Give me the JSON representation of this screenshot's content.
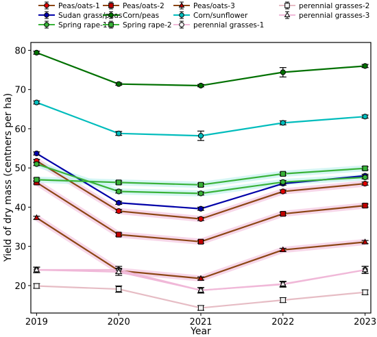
{
  "chart_data": {
    "type": "line",
    "title": "",
    "xlabel": "Year",
    "ylabel": "Yield of dry mass (centners per ha)",
    "x": [
      2019,
      2020,
      2021,
      2022,
      2023
    ],
    "xticks": [
      "2019",
      "2020",
      "2021",
      "2022",
      "2023"
    ],
    "yticks": [
      "20",
      "30",
      "40",
      "50",
      "60",
      "70",
      "80"
    ],
    "ylim": [
      13,
      82
    ],
    "grid": false,
    "legend": "top, outside plot, 3 columns",
    "series": [
      {
        "name": "Peas/oats-1",
        "values": [
          51.8,
          39.0,
          37.0,
          44.0,
          46.0
        ],
        "err": [
          0.4,
          0.4,
          0.4,
          0.4,
          0.4
        ],
        "color": "#8b4513",
        "marker": "circle",
        "marker_color": "#e00000",
        "halo": "#f4c6e0"
      },
      {
        "name": "Peas/oats-2",
        "values": [
          46.3,
          33.0,
          31.2,
          38.3,
          40.4
        ],
        "err": [
          0.4,
          0.4,
          0.4,
          0.4,
          0.4
        ],
        "color": "#8b4513",
        "marker": "square",
        "marker_color": "#c00000",
        "halo": "#f4c6e0"
      },
      {
        "name": "Peas/oats-3",
        "values": [
          37.3,
          23.8,
          21.8,
          29.1,
          31.1
        ],
        "err": [
          0.4,
          0.4,
          0.4,
          0.4,
          0.4
        ],
        "color": "#8b4513",
        "marker": "triangle",
        "marker_color": "#c00000",
        "halo": "#f4c6e0"
      },
      {
        "name": "Sudan grass/peas",
        "values": [
          53.7,
          41.1,
          39.6,
          46.0,
          48.0
        ],
        "err": [
          0.4,
          0.4,
          0.4,
          0.4,
          0.4
        ],
        "color": "#0000a8",
        "marker": "circle",
        "marker_color": "#0000a8",
        "halo": ""
      },
      {
        "name": "Corn/peas",
        "values": [
          79.4,
          71.4,
          71.0,
          74.4,
          76.0
        ],
        "err": [
          0.4,
          0.3,
          0.3,
          1.2,
          0.4
        ],
        "color": "#007000",
        "marker": "circle",
        "marker_color": "#007000",
        "halo": ""
      },
      {
        "name": "Corn/sunflower",
        "values": [
          66.7,
          58.8,
          58.2,
          61.5,
          63.1
        ],
        "err": [
          0.4,
          0.5,
          1.2,
          0.5,
          0.4
        ],
        "color": "#00bcbc",
        "marker": "circle",
        "marker_color": "#00bcbc",
        "halo": ""
      },
      {
        "name": "Spring rape-1",
        "values": [
          51.0,
          44.0,
          43.5,
          46.4,
          47.6
        ],
        "err": [
          0.4,
          0.4,
          0.4,
          0.4,
          0.4
        ],
        "color": "#38b238",
        "marker": "circle",
        "marker_color": "#38b238",
        "halo": "#c4f2f0"
      },
      {
        "name": "Spring rape-2",
        "values": [
          47.0,
          46.3,
          45.7,
          48.5,
          49.9
        ],
        "err": [
          0.4,
          0.4,
          0.4,
          0.4,
          0.4
        ],
        "color": "#38b238",
        "marker": "square",
        "marker_color": "#38b238",
        "halo": "#c4f2f0"
      },
      {
        "name": "perennial grasses-1",
        "values": [
          24.0,
          24.0,
          18.8,
          20.3,
          24.0
        ],
        "err": [
          0.7,
          0.9,
          0.7,
          0.7,
          0.9
        ],
        "color": "#f0b8d8",
        "marker": "circle",
        "marker_color": "#888888",
        "halo": ""
      },
      {
        "name": "perennial grasses-2",
        "values": [
          19.9,
          19.1,
          14.3,
          16.3,
          18.3
        ],
        "err": [
          0.6,
          0.8,
          0.6,
          0.6,
          0.6
        ],
        "color": "#e6bcc4",
        "marker": "square",
        "marker_color": "#a0a0a0",
        "halo": ""
      },
      {
        "name": "perennial grasses-3",
        "values": [
          24.0,
          23.5,
          18.8,
          20.4,
          24.0
        ],
        "err": [
          0.7,
          0.9,
          0.7,
          0.7,
          0.9
        ],
        "color": "#f0b8d8",
        "marker": "triangle",
        "marker_color": "#a0a0a0",
        "halo": ""
      }
    ],
    "legend_order": [
      0,
      3,
      6,
      1,
      4,
      7,
      2,
      5,
      8,
      9,
      10
    ]
  }
}
